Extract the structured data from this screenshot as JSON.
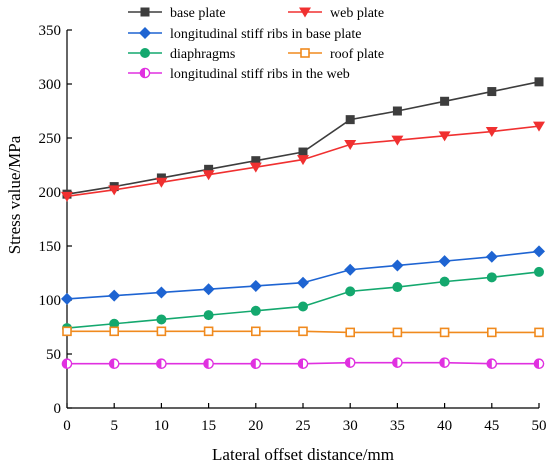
{
  "chart_data": {
    "type": "line",
    "xlabel": "Lateral offset distance/mm",
    "ylabel": "Stress value/MPa",
    "xlim": [
      0,
      50
    ],
    "ylim": [
      0,
      350
    ],
    "xticks": [
      0,
      5,
      10,
      15,
      20,
      25,
      30,
      35,
      40,
      45,
      50
    ],
    "yticks": [
      0,
      50,
      100,
      150,
      200,
      250,
      300,
      350
    ],
    "grid": false,
    "legend_position": "top",
    "x": [
      0,
      5,
      10,
      15,
      20,
      25,
      30,
      35,
      40,
      45,
      50
    ],
    "series": [
      {
        "name": "base plate",
        "color": "#3d3d3d",
        "marker": "square",
        "values": [
          198,
          205,
          213,
          221,
          229,
          237,
          267,
          275,
          284,
          293,
          302
        ]
      },
      {
        "name": "web plate",
        "color": "#f03030",
        "marker": "triangle-down",
        "values": [
          196,
          202,
          209,
          216,
          223,
          230,
          244,
          248,
          252,
          256,
          261
        ]
      },
      {
        "name": "longitudinal stiff ribs in base plate",
        "color": "#1e64d2",
        "marker": "diamond",
        "values": [
          101,
          104,
          107,
          110,
          113,
          116,
          128,
          132,
          136,
          140,
          145
        ]
      },
      {
        "name": "diaphragms",
        "color": "#14a86e",
        "marker": "circle",
        "values": [
          74,
          78,
          82,
          86,
          90,
          94,
          108,
          112,
          117,
          121,
          126
        ]
      },
      {
        "name": "roof plate",
        "color": "#f08a1e",
        "marker": "square-open",
        "values": [
          71,
          71,
          71,
          71,
          71,
          71,
          70,
          70,
          70,
          70,
          70
        ]
      },
      {
        "name": "longitudinal stiff ribs in the web",
        "color": "#e030e0",
        "marker": "circle-half",
        "values": [
          41,
          41,
          41,
          41,
          41,
          41,
          42,
          42,
          42,
          41,
          41
        ]
      }
    ]
  }
}
